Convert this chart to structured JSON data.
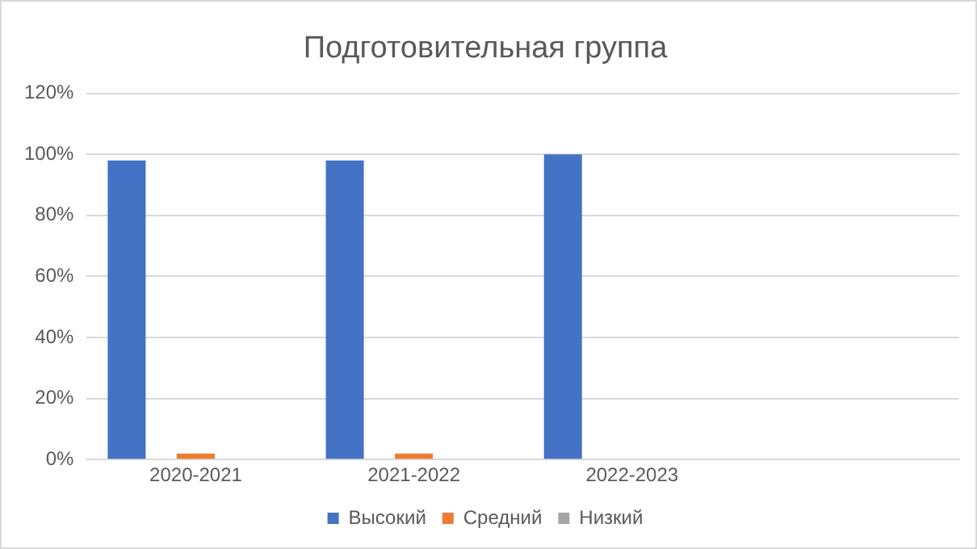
{
  "chart_data": {
    "type": "bar",
    "title": "Подготовительная группа",
    "categories": [
      "2020-2021",
      "2021-2022",
      "2022-2023",
      null
    ],
    "series": [
      {
        "name": "Высокий",
        "color": "#4472c4",
        "values": [
          98,
          98,
          100,
          null
        ]
      },
      {
        "name": "Средний",
        "color": "#ed7d31",
        "values": [
          2,
          2,
          0,
          null
        ]
      },
      {
        "name": "Низкий",
        "color": "#a5a5a5",
        "values": [
          0,
          0,
          0,
          null
        ]
      }
    ],
    "ylim": [
      0,
      120
    ],
    "yticks": [
      {
        "value": 0,
        "label": "0%"
      },
      {
        "value": 20,
        "label": "20%"
      },
      {
        "value": 40,
        "label": "40%"
      },
      {
        "value": 60,
        "label": "60%"
      },
      {
        "value": 80,
        "label": "80%"
      },
      {
        "value": 100,
        "label": "100%"
      },
      {
        "value": 120,
        "label": "120%"
      }
    ],
    "grid": "y",
    "legend": "bottom"
  }
}
